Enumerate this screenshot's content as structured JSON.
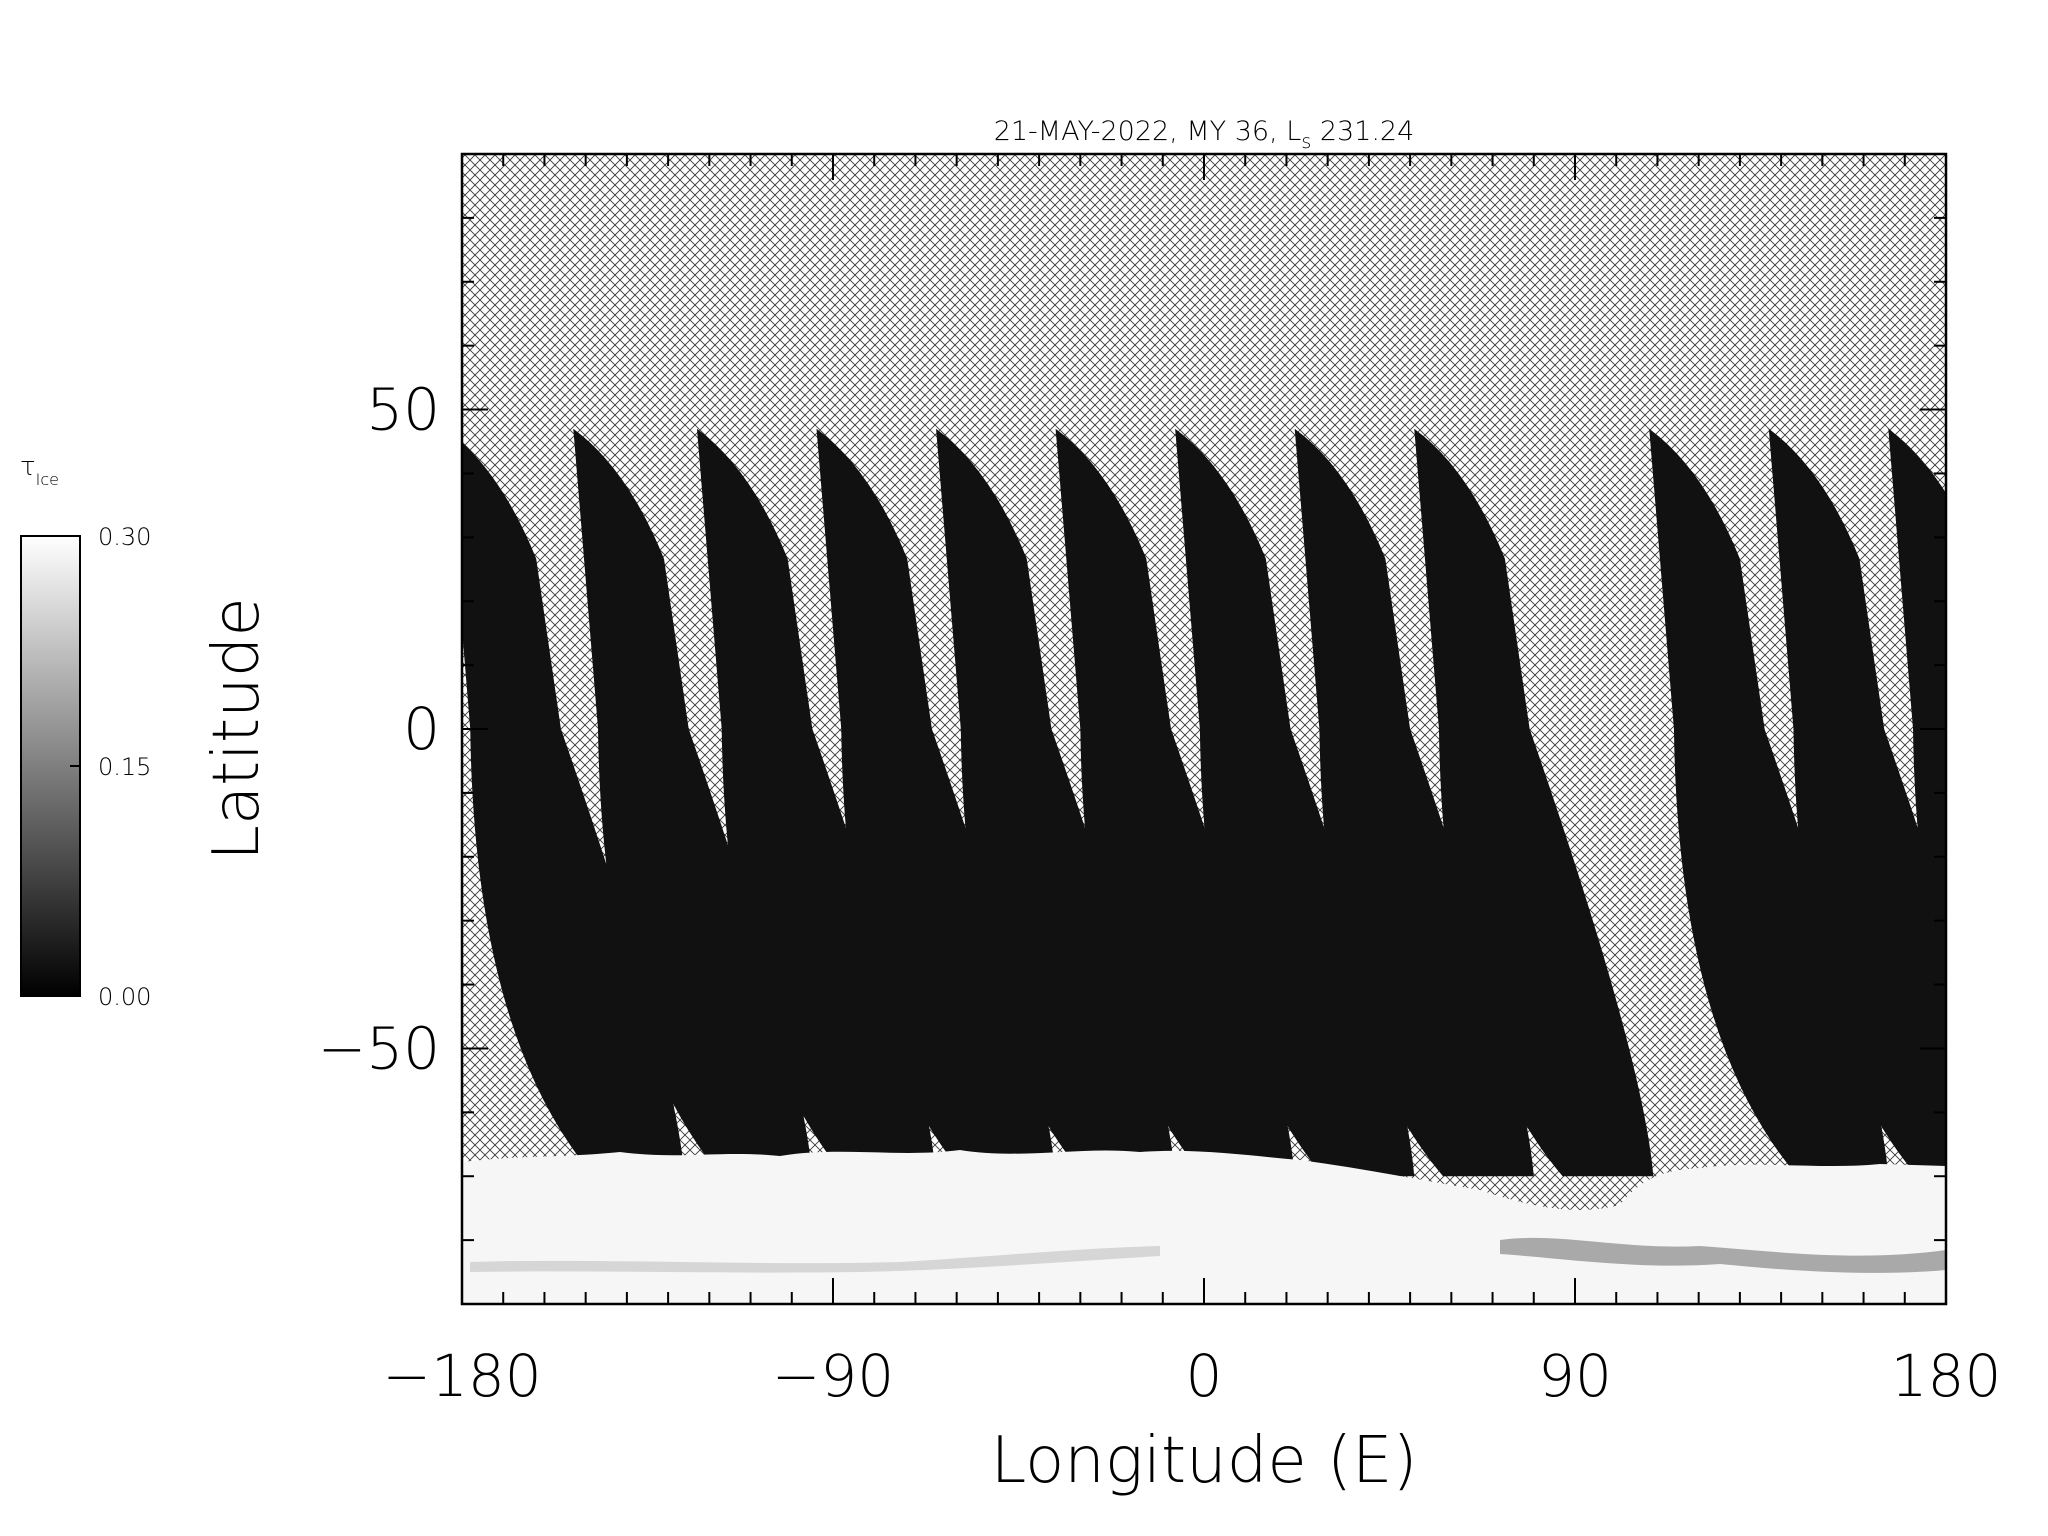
{
  "chart_data": {
    "type": "heatmap",
    "title_parts": {
      "prefix": "21-MAY-2022, MY 36,  L",
      "subscript": "s",
      "suffix": " 231.24"
    },
    "xlabel": "Longitude (E)",
    "ylabel": "Latitude",
    "xlim": [
      -180,
      180
    ],
    "ylim": [
      -90,
      90
    ],
    "xticks": [
      -180,
      -90,
      0,
      90,
      180
    ],
    "xtick_labels": [
      "−180",
      "−90",
      "0",
      "90",
      "180"
    ],
    "xminor_step": 10,
    "yticks": [
      -50,
      0,
      50
    ],
    "ytick_labels": [
      "−50",
      "0",
      "50"
    ],
    "yminor_step": 10,
    "variable": "τ Ice",
    "colorbar": {
      "label_symbol": "τ",
      "label_subscript": "Ice",
      "range": [
        0.0,
        0.3
      ],
      "ticks": [
        0.0,
        0.15,
        0.3
      ],
      "tick_labels": [
        "0.00",
        "0.15",
        "0.30"
      ],
      "colors": [
        "#000000",
        "#ffffff"
      ]
    },
    "no_data_fill": "cross-hatch",
    "swaths": {
      "count": 13,
      "equator_longitudes": [
        -178,
        -147,
        -117,
        -88,
        -59,
        -30,
        -1,
        28,
        57,
        114,
        143,
        172
      ],
      "missing_orbit_near_longitude": 86,
      "north_limit_lat": 47,
      "south_limit_lat": -70,
      "typical_tau": 0.02
    },
    "south_polar_hood": {
      "lat_range": [
        -90,
        -68
      ],
      "typical_tau": 0.29
    }
  }
}
